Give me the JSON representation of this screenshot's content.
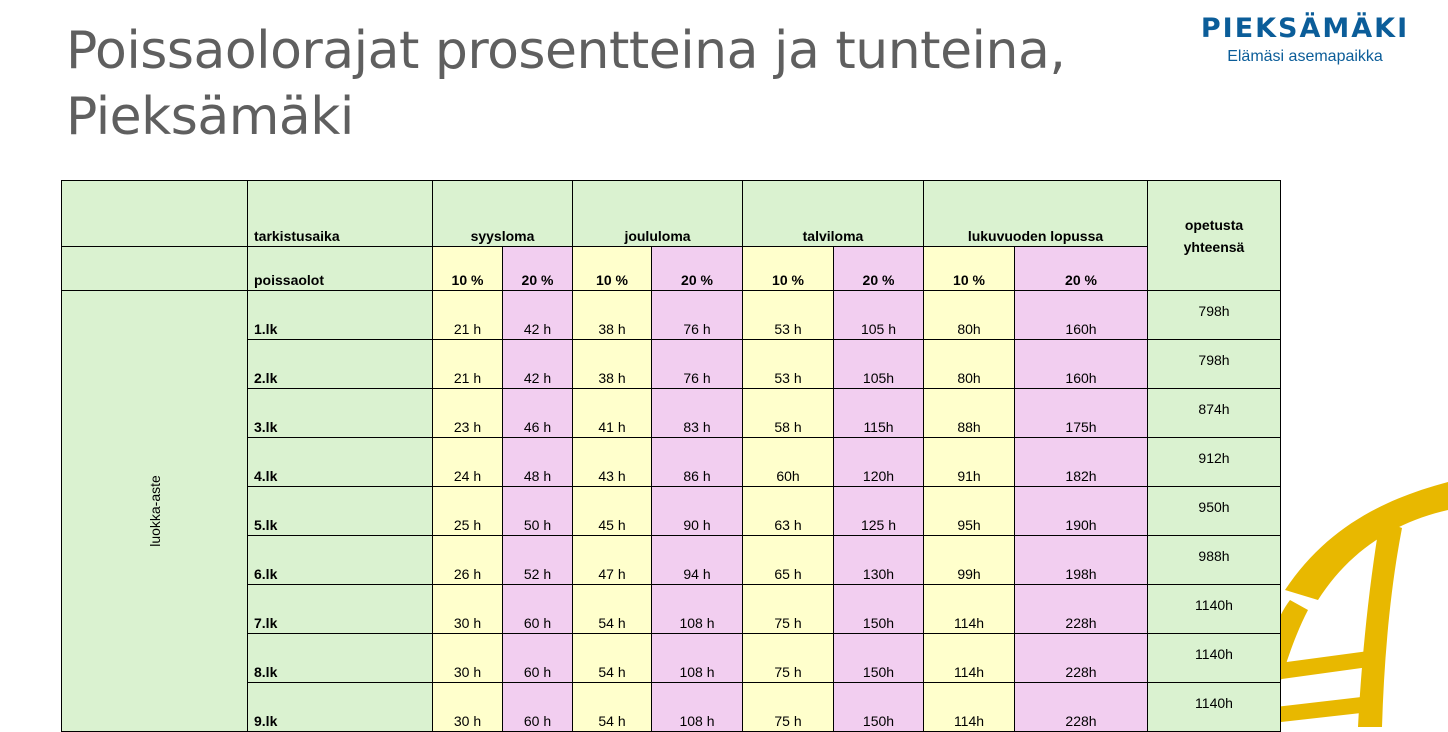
{
  "title": "Poissaolorajat prosentteina ja tunteina, Pieksämäki",
  "logo": {
    "name": "PIEKSÄMÄKI",
    "slogan": "Elämäsi asemapaikka"
  },
  "colors": {
    "green": "#daf2d0",
    "yellow": "#ffffcc",
    "pink": "#f2cef0",
    "logo_blue": "#0b5d99",
    "deco_gold": "#e8b800"
  },
  "table": {
    "header": {
      "tarkistusaika": "tarkistusaika",
      "syysloma": "syysloma",
      "joululoma": "joululoma",
      "talviloma": "talviloma",
      "lukuvuoden_lopussa": "lukuvuoden lopussa",
      "opetusta_1": "opetusta",
      "opetusta_2": "yhteensä",
      "poissaolot": "poissaolot",
      "p10": "10 %",
      "p20": "20 %"
    },
    "side_label": "luokka-aste",
    "rows": [
      {
        "grade": "1.lk",
        "values": [
          "21 h",
          "42 h",
          "38 h",
          "76 h",
          "53 h",
          "105 h",
          "80h",
          "160h"
        ],
        "total": "798h"
      },
      {
        "grade": "2.lk",
        "values": [
          "21 h",
          "42 h",
          "38 h",
          "76 h",
          "53 h",
          "105h",
          "80h",
          "160h"
        ],
        "total": "798h"
      },
      {
        "grade": "3.lk",
        "values": [
          "23 h",
          "46 h",
          "41 h",
          "83 h",
          "58 h",
          "115h",
          "88h",
          "175h"
        ],
        "total": "874h"
      },
      {
        "grade": "4.lk",
        "values": [
          "24 h",
          "48 h",
          "43 h",
          "86 h",
          "60h",
          "120h",
          "91h",
          "182h"
        ],
        "total": "912h"
      },
      {
        "grade": "5.lk",
        "values": [
          "25 h",
          "50 h",
          "45 h",
          "90 h",
          "63 h",
          "125 h",
          "95h",
          "190h"
        ],
        "total": "950h"
      },
      {
        "grade": "6.lk",
        "values": [
          "26 h",
          "52 h",
          "47 h",
          "94 h",
          "65 h",
          "130h",
          "99h",
          "198h"
        ],
        "total": "988h"
      },
      {
        "grade": "7.lk",
        "values": [
          "30 h",
          "60 h",
          "54 h",
          "108 h",
          "75 h",
          "150h",
          "114h",
          "228h"
        ],
        "total": "1140h"
      },
      {
        "grade": "8.lk",
        "values": [
          "30 h",
          "60 h",
          "54 h",
          "108 h",
          "75 h",
          "150h",
          "114h",
          "228h"
        ],
        "total": "1140h"
      },
      {
        "grade": "9.lk",
        "values": [
          "30 h",
          "60 h",
          "54 h",
          "108 h",
          "75 h",
          "150h",
          "114h",
          "228h"
        ],
        "total": "1140h"
      }
    ]
  }
}
